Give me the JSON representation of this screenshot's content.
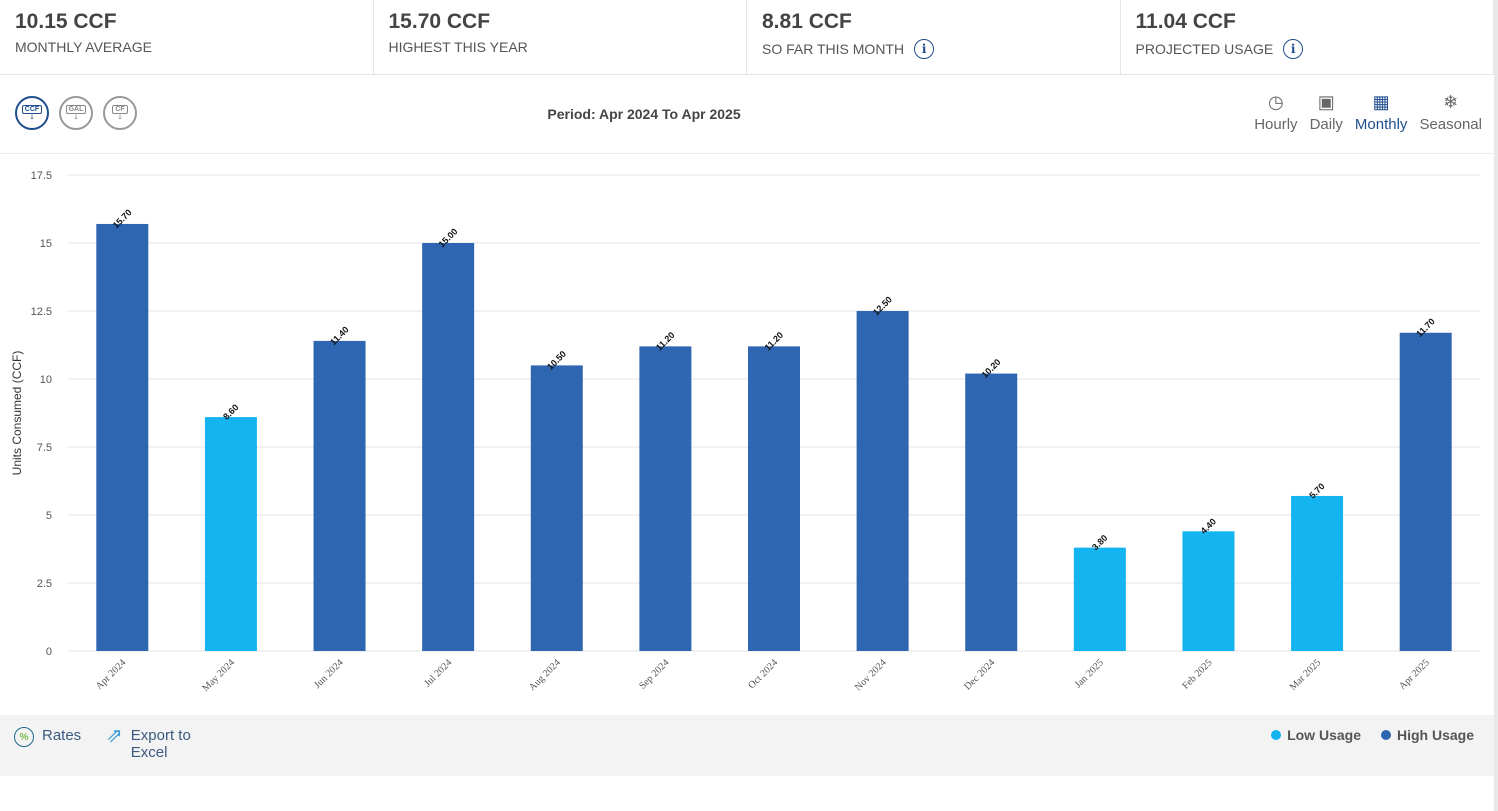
{
  "stats": [
    {
      "value": "10.15 CCF",
      "label": "MONTHLY AVERAGE",
      "info": false
    },
    {
      "value": "15.70 CCF",
      "label": "HIGHEST THIS YEAR",
      "info": false
    },
    {
      "value": "8.81 CCF",
      "label": "SO FAR THIS MONTH",
      "info": true
    },
    {
      "value": "11.04 CCF",
      "label": "PROJECTED USAGE",
      "info": true
    }
  ],
  "units": [
    {
      "label": "CCF",
      "active": true
    },
    {
      "label": "GAL",
      "active": false
    },
    {
      "label": "CF",
      "active": false
    }
  ],
  "period": "Period: Apr 2024 To Apr 2025",
  "views": [
    {
      "label": "Hourly",
      "icon": "clock-icon"
    },
    {
      "label": "Daily",
      "icon": "day-calendar-icon"
    },
    {
      "label": "Monthly",
      "icon": "month-calendar-icon",
      "active": true
    },
    {
      "label": "Seasonal",
      "icon": "snowflake-icon"
    }
  ],
  "footer": {
    "rates": "Rates",
    "export": "Export to Excel"
  },
  "colors": {
    "low": "#14b4f0",
    "high": "#2e66b1",
    "active": "#1f4e8c"
  },
  "chart_data": {
    "type": "bar",
    "ylabel": "Units Consumed (CCF)",
    "ylim": [
      0,
      17.5
    ],
    "yticks": [
      "0",
      "2.5",
      "5",
      "7.5",
      "10",
      "12.5",
      "15",
      "17.5"
    ],
    "grid": true,
    "categories": [
      "Apr 2024",
      "May 2024",
      "Jun 2024",
      "Jul 2024",
      "Aug 2024",
      "Sep 2024",
      "Oct 2024",
      "Nov 2024",
      "Dec 2024",
      "Jan 2025",
      "Feb 2025",
      "Mar 2025",
      "Apr 2025"
    ],
    "values": [
      15.7,
      8.6,
      11.4,
      15.0,
      10.5,
      11.2,
      11.2,
      12.5,
      10.2,
      3.8,
      4.4,
      5.7,
      11.7
    ],
    "labels": [
      "15.70",
      "8.60",
      "11.40",
      "15.00",
      "10.50",
      "11.20",
      "11.20",
      "12.50",
      "10.20",
      "3.80",
      "4.40",
      "5.70",
      "11.70"
    ],
    "usage": [
      "high",
      "low",
      "high",
      "high",
      "high",
      "high",
      "high",
      "high",
      "high",
      "low",
      "low",
      "low",
      "high"
    ],
    "legend": [
      {
        "name": "Low Usage",
        "key": "low"
      },
      {
        "name": "High Usage",
        "key": "high"
      }
    ],
    "legend_position": "bottom-right"
  }
}
